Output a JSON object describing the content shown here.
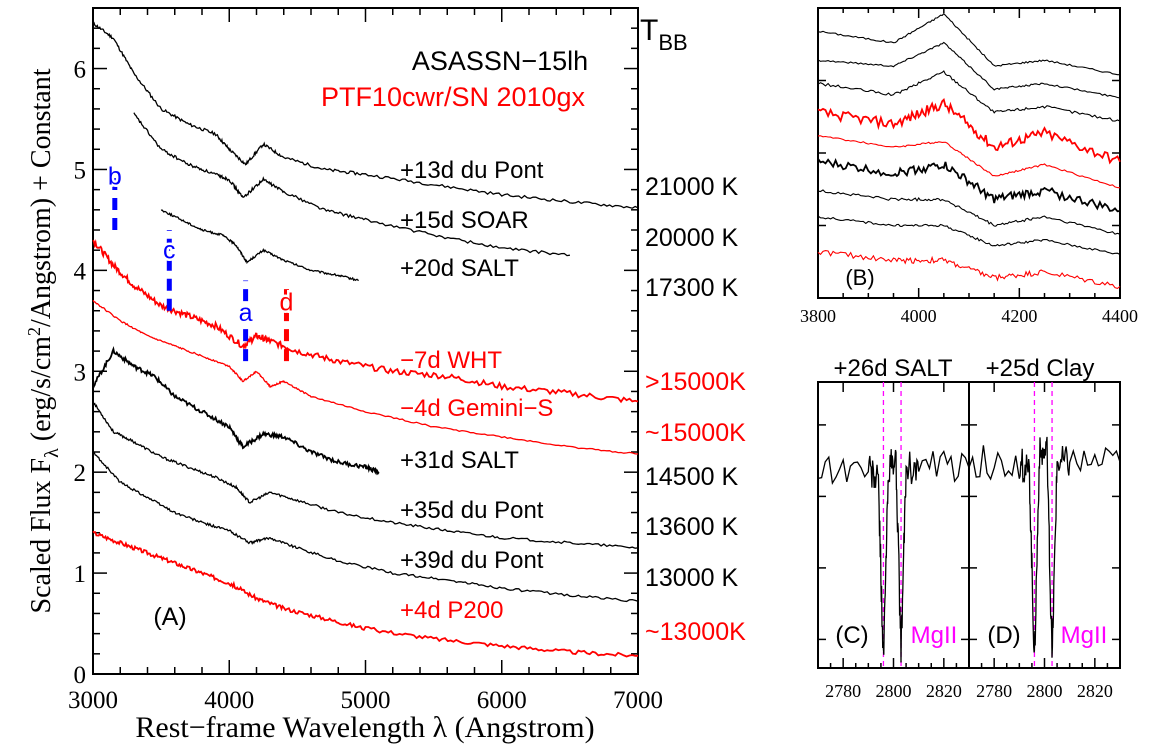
{
  "colors": {
    "black": "#000000",
    "red": "#ff0000",
    "blue": "#0000ff",
    "magenta": "#ff00ff"
  },
  "chart_data": [
    {
      "panel": "A",
      "type": "line",
      "panel_label": "(A)",
      "title_lines": [
        "ASASSN−15lh",
        "PTF10cwr/SN 2010gx"
      ],
      "temperature_header": "T",
      "temperature_header_sub": "BB",
      "xlabel": "Rest−frame Wavelength λ (Angstrom)",
      "ylabel": "Scaled Flux Fλ (erg/s/cm²/Angstrom) + Constant",
      "ylabel_prefix": "Scaled Flux F",
      "ylabel_sub": "λ",
      "ylabel_mid": " (erg/s/cm",
      "ylabel_sup": "2",
      "ylabel_suffix": "/Angstrom) + Constant",
      "xlim": [
        3000,
        7000
      ],
      "ylim": [
        0,
        6.6
      ],
      "x_ticks": [
        3000,
        4000,
        5000,
        6000,
        7000
      ],
      "x_tick_labels": [
        "3000",
        "4000",
        "5000",
        "6000",
        "7000"
      ],
      "y_ticks": [
        0,
        1,
        2,
        3,
        4,
        5,
        6
      ],
      "y_tick_labels": [
        "0",
        "1",
        "2",
        "3",
        "4",
        "5",
        "6"
      ],
      "series": [
        {
          "name": "+13d du Pont",
          "color": "#000000",
          "temperature": "21000 K",
          "x": [
            3000,
            3150,
            3300,
            3500,
            3700,
            3900,
            4000,
            4120,
            4250,
            4400,
            4700,
            5000,
            5500,
            6000,
            6500,
            7000
          ],
          "y": [
            6.45,
            6.3,
            5.95,
            5.6,
            5.45,
            5.35,
            5.2,
            5.05,
            5.25,
            5.12,
            5.0,
            4.95,
            4.85,
            4.75,
            4.68,
            4.62
          ]
        },
        {
          "name": "+15d SOAR",
          "color": "#000000",
          "temperature": "20000 K",
          "x": [
            3300,
            3500,
            3700,
            3900,
            4000,
            4100,
            4250,
            4400,
            4700,
            5000,
            5500,
            6000,
            6500
          ],
          "y": [
            5.55,
            5.2,
            5.05,
            4.95,
            4.9,
            4.72,
            4.9,
            4.78,
            4.6,
            4.5,
            4.35,
            4.22,
            4.15
          ]
        },
        {
          "name": "+20d SALT",
          "color": "#000000",
          "temperature": "17300 K",
          "x": [
            3500,
            3650,
            3800,
            3950,
            4050,
            4130,
            4250,
            4400,
            4600,
            4800,
            4950
          ],
          "y": [
            4.6,
            4.5,
            4.4,
            4.35,
            4.25,
            4.08,
            4.2,
            4.1,
            4.0,
            3.95,
            3.9
          ]
        },
        {
          "name": "−7d WHT",
          "color": "#ff0000",
          "temperature": ">15000K",
          "x": [
            3000,
            3150,
            3300,
            3500,
            3700,
            3900,
            4100,
            4200,
            4300,
            4500,
            4800,
            5200,
            5600,
            6000,
            6500,
            7000
          ],
          "y": [
            4.3,
            4.05,
            3.85,
            3.65,
            3.55,
            3.45,
            3.25,
            3.35,
            3.3,
            3.2,
            3.1,
            3.0,
            2.95,
            2.85,
            2.78,
            2.7
          ]
        },
        {
          "name": "−4d Gemini−S",
          "color": "#ff0000",
          "temperature": "~15000K",
          "x": [
            3000,
            3200,
            3400,
            3600,
            3800,
            4000,
            4100,
            4200,
            4300,
            4400,
            4600,
            5000,
            5500,
            6000,
            6500,
            7000
          ],
          "y": [
            3.7,
            3.5,
            3.35,
            3.25,
            3.15,
            3.05,
            2.9,
            3.0,
            2.85,
            2.9,
            2.75,
            2.6,
            2.45,
            2.35,
            2.25,
            2.18
          ]
        },
        {
          "name": "+31d SALT",
          "color": "#000000",
          "temperature": "14500 K",
          "x": [
            3000,
            3150,
            3300,
            3450,
            3600,
            3800,
            4000,
            4100,
            4250,
            4400,
            4600,
            4800,
            5000,
            5100
          ],
          "y": [
            2.85,
            3.2,
            3.05,
            2.95,
            2.75,
            2.6,
            2.45,
            2.25,
            2.38,
            2.35,
            2.2,
            2.1,
            2.05,
            2.0
          ]
        },
        {
          "name": "+35d du Pont",
          "color": "#000000",
          "temperature": "13600 K",
          "x": [
            3000,
            3150,
            3300,
            3500,
            3700,
            3900,
            4050,
            4150,
            4300,
            4500,
            4800,
            5200,
            5600,
            6000,
            6500,
            7000
          ],
          "y": [
            2.7,
            2.4,
            2.3,
            2.15,
            2.05,
            1.95,
            1.85,
            1.7,
            1.8,
            1.72,
            1.6,
            1.5,
            1.42,
            1.35,
            1.3,
            1.25
          ]
        },
        {
          "name": "+39d du Pont",
          "color": "#000000",
          "temperature": "13000 K",
          "x": [
            3000,
            3200,
            3400,
            3600,
            3800,
            4000,
            4150,
            4300,
            4500,
            4800,
            5200,
            5600,
            6000,
            6500,
            7000
          ],
          "y": [
            2.2,
            1.9,
            1.75,
            1.6,
            1.5,
            1.42,
            1.3,
            1.35,
            1.25,
            1.12,
            1.0,
            0.93,
            0.85,
            0.78,
            0.72
          ]
        },
        {
          "name": "+4d P200",
          "color": "#ff0000",
          "temperature": "~13000K",
          "x": [
            3000,
            3200,
            3400,
            3600,
            3800,
            4000,
            4200,
            4400,
            4700,
            5000,
            5500,
            6000,
            6500,
            7000
          ],
          "y": [
            1.4,
            1.3,
            1.2,
            1.1,
            1.0,
            0.9,
            0.75,
            0.65,
            0.55,
            0.45,
            0.35,
            0.28,
            0.22,
            0.18
          ]
        }
      ],
      "annotations": [
        {
          "text": "b",
          "x": 3160,
          "y": 4.85,
          "color": "#0000ff",
          "bar_y": [
            4.4,
            5.0
          ]
        },
        {
          "text": "c",
          "x": 3560,
          "y": 4.12,
          "color": "#0000ff",
          "bar_y": [
            3.6,
            4.4
          ]
        },
        {
          "text": "a",
          "x": 4120,
          "y": 3.5,
          "color": "#0000ff",
          "bar_y": [
            3.1,
            3.9
          ]
        },
        {
          "text": "d",
          "x": 4420,
          "y": 3.6,
          "color": "#ff0000",
          "bar_y": [
            3.1,
            3.85
          ]
        }
      ]
    },
    {
      "panel": "B",
      "type": "line",
      "panel_label": "(B)",
      "xlim": [
        3800,
        4400
      ],
      "x_ticks": [
        3800,
        4000,
        4200,
        4400
      ],
      "x_tick_labels": [
        "3800",
        "4000",
        "4200",
        "4400"
      ],
      "series": [
        {
          "color": "#000000",
          "x": [
            3800,
            3950,
            4050,
            4150,
            4250,
            4400
          ],
          "y": [
            0.92,
            0.88,
            0.98,
            0.8,
            0.82,
            0.77
          ]
        },
        {
          "color": "#000000",
          "x": [
            3800,
            3950,
            4050,
            4150,
            4250,
            4400
          ],
          "y": [
            0.82,
            0.8,
            0.88,
            0.72,
            0.74,
            0.69
          ]
        },
        {
          "color": "#000000",
          "x": [
            3800,
            3950,
            4050,
            4150,
            4250,
            4400
          ],
          "y": [
            0.74,
            0.7,
            0.78,
            0.64,
            0.66,
            0.61
          ]
        },
        {
          "color": "#ff0000",
          "x": [
            3800,
            3950,
            4050,
            4150,
            4250,
            4400
          ],
          "y": [
            0.64,
            0.6,
            0.67,
            0.52,
            0.57,
            0.47
          ]
        },
        {
          "color": "#ff0000",
          "x": [
            3800,
            3950,
            4050,
            4150,
            4250,
            4400
          ],
          "y": [
            0.56,
            0.52,
            0.54,
            0.42,
            0.46,
            0.38
          ]
        },
        {
          "color": "#000000",
          "x": [
            3800,
            3950,
            4050,
            4150,
            4250,
            4400
          ],
          "y": [
            0.47,
            0.43,
            0.46,
            0.34,
            0.37,
            0.3
          ]
        },
        {
          "color": "#000000",
          "x": [
            3800,
            3950,
            4050,
            4150,
            4250,
            4400
          ],
          "y": [
            0.37,
            0.34,
            0.34,
            0.25,
            0.28,
            0.22
          ]
        },
        {
          "color": "#000000",
          "x": [
            3800,
            3950,
            4050,
            4150,
            4250,
            4400
          ],
          "y": [
            0.28,
            0.25,
            0.25,
            0.18,
            0.2,
            0.15
          ]
        },
        {
          "color": "#ff0000",
          "x": [
            3800,
            3950,
            4050,
            4150,
            4250,
            4400
          ],
          "y": [
            0.16,
            0.13,
            0.13,
            0.07,
            0.09,
            0.04
          ]
        }
      ]
    },
    {
      "panel": "C",
      "type": "line",
      "panel_label": "(C)",
      "title": "+26d SALT",
      "line_label": "MgII",
      "xlim": [
        2770,
        2830
      ],
      "x_ticks": [
        2780,
        2800,
        2820
      ],
      "x_tick_labels": [
        "2780",
        "2800",
        "2820"
      ],
      "line_markers": [
        2796,
        2803
      ],
      "series": [
        {
          "color": "#000000",
          "x": [
            2770,
            2790,
            2794,
            2796,
            2798,
            2801,
            2803,
            2805,
            2810,
            2830
          ],
          "y": [
            0.7,
            0.7,
            0.65,
            0.02,
            0.7,
            0.72,
            0.05,
            0.7,
            0.7,
            0.7
          ]
        }
      ]
    },
    {
      "panel": "D",
      "type": "line",
      "panel_label": "(D)",
      "title": "+25d Clay",
      "line_label": "MgII",
      "xlim": [
        2770,
        2830
      ],
      "x_ticks": [
        2780,
        2800,
        2820
      ],
      "x_tick_labels": [
        "2780",
        "2800",
        "2820"
      ],
      "line_markers": [
        2796,
        2803
      ],
      "series": [
        {
          "color": "#000000",
          "x": [
            2770,
            2790,
            2794,
            2796,
            2798,
            2801,
            2803,
            2805,
            2810,
            2830
          ],
          "y": [
            0.72,
            0.72,
            0.68,
            0.02,
            0.75,
            0.75,
            0.02,
            0.72,
            0.72,
            0.72
          ]
        }
      ]
    }
  ]
}
